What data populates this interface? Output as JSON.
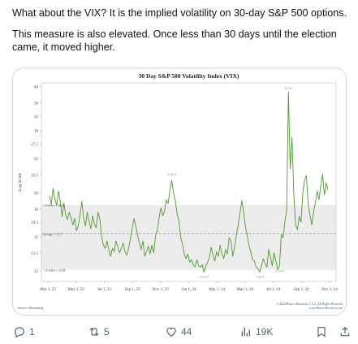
{
  "tweet": {
    "paragraph1": "What about the VIX? It is the implied volatility on 30-day S&P 500 options.",
    "paragraph2": "This measure is also elevated. Once less than 30 days until the election came, it moved higher."
  },
  "actions": {
    "reply_count": "1",
    "retweet_count": "5",
    "like_count": "44",
    "views_count": "19K"
  },
  "chart_data": {
    "type": "line",
    "title": "30 Day S&P 500 Volatility Index (VIX)",
    "ylabel": "Log Scale",
    "xlabel": "",
    "y_scale": "log",
    "ylim": [
      11.2,
      41
    ],
    "y_ticks": [
      "40",
      "36",
      "33",
      "30",
      "27.5",
      "25",
      "22.5",
      "20",
      "18",
      "16.5",
      "15",
      "13.5",
      "12"
    ],
    "x_ticks": [
      "Mar 1, 23",
      "May 1, 23",
      "Jul 1, 23",
      "Sep 1, 23",
      "Nov 1, 23",
      "Jan 1, 24",
      "Mar 1, 24",
      "May 1, 24",
      "Jul 1, 24",
      "Sep 1, 24",
      "Nov 1, 24"
    ],
    "reference_lines": [
      {
        "label": "Average = 15.27",
        "value": 15.27,
        "style": "dashed"
      },
      {
        "label": "1.0 StDev = 18.46",
        "value": 18.46
      },
      {
        "label": "-1.0 StDev = 12.08",
        "value": 12.08
      }
    ],
    "shaded_band": [
      12.08,
      18.46
    ],
    "series": [
      {
        "values": [
          19.6,
          18.5,
          20.6,
          19.2,
          18.4,
          20.2,
          18.9,
          17.1,
          18.7,
          17.3,
          16.8,
          17.6,
          17.0,
          16.2,
          16.9,
          15.6,
          16.1,
          17.3,
          18.9,
          17.0,
          16.1,
          17.6,
          16.6,
          15.8,
          17.2,
          16.3,
          15.9,
          17.6,
          16.8,
          15.0,
          14.2,
          13.9,
          14.6,
          13.8,
          13.2,
          13.9,
          13.6,
          14.6,
          14.0,
          13.5,
          13.9,
          14.4,
          13.6,
          13.3,
          13.9,
          14.8,
          15.8,
          16.9,
          16.1,
          15.2,
          14.4,
          13.8,
          14.6,
          13.2,
          13.6,
          14.1,
          13.4,
          14.2,
          13.5,
          15.1,
          15.6,
          17.0,
          18.1,
          17.2,
          17.7,
          19.1,
          18.6,
          20.3,
          21.7,
          20.0,
          19.0,
          17.5,
          16.6,
          15.0,
          14.3,
          13.4,
          13.0,
          13.4,
          12.7,
          12.9,
          12.5,
          12.3,
          12.9,
          12.4,
          12.3,
          12.5,
          11.9,
          12.4,
          12.7,
          13.1,
          14.0,
          13.3,
          12.8,
          13.6,
          13.2,
          14.2,
          13.4,
          13.0,
          13.8,
          13.4,
          14.9,
          14.6,
          13.2,
          14.0,
          15.1,
          16.2,
          17.5,
          19.0,
          17.7,
          16.1,
          15.2,
          14.2,
          13.6,
          12.9,
          12.8,
          12.3,
          12.2,
          11.9,
          12.4,
          13.0,
          12.6,
          12.3,
          13.8,
          13.1,
          12.4,
          13.5,
          12.8,
          12.1,
          12.4,
          15.2,
          14.9,
          16.5,
          17.8,
          38.6,
          23.4,
          28.7,
          19.6,
          16.2,
          15.7,
          17.1,
          16.5,
          19.9,
          21.7,
          22.4,
          18.5,
          17.3,
          16.2,
          17.6,
          18.8,
          20.2,
          19.1,
          20.8,
          22.6,
          19.7,
          21.3,
          20.4
        ]
      }
    ],
    "annotations": [
      "8/5/24",
      "5/18/24",
      "10/31/24",
      "7/12/24",
      "10/28/23",
      "12/14/23"
    ],
    "source": "Source: Bloomberg",
    "copyright": "© 2024 Bianco Research, L.L.C. All Rights Reserved",
    "url": "www.BiancoResearch.com",
    "grid": false,
    "legend": "none"
  }
}
